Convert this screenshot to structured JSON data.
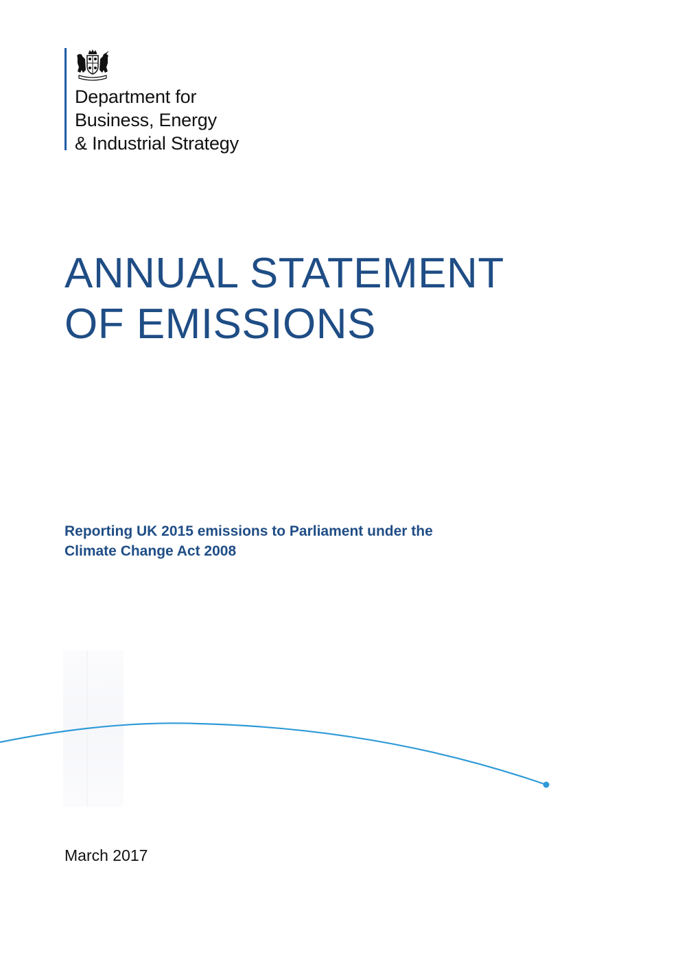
{
  "organisation": {
    "name_lines": [
      "Department for",
      "Business, Energy",
      "& Industrial Strategy"
    ],
    "crest_icon": "royal-coat-of-arms-icon",
    "rule_color": "#1f5aa6"
  },
  "document": {
    "title_lines": [
      "ANNUAL STATEMENT",
      "OF EMISSIONS"
    ],
    "subtitle_lines": [
      "Reporting UK 2015 emissions to Parliament under the",
      "Climate Change Act 2008"
    ],
    "date": "March 2017"
  },
  "colors": {
    "title": "#1f4d85",
    "subtitle": "#1f4d85",
    "curve": "#2e9ad8",
    "text": "#111111"
  },
  "icons": {
    "decorative_curve": "arc-line-icon",
    "curve_end": "dot-icon"
  }
}
